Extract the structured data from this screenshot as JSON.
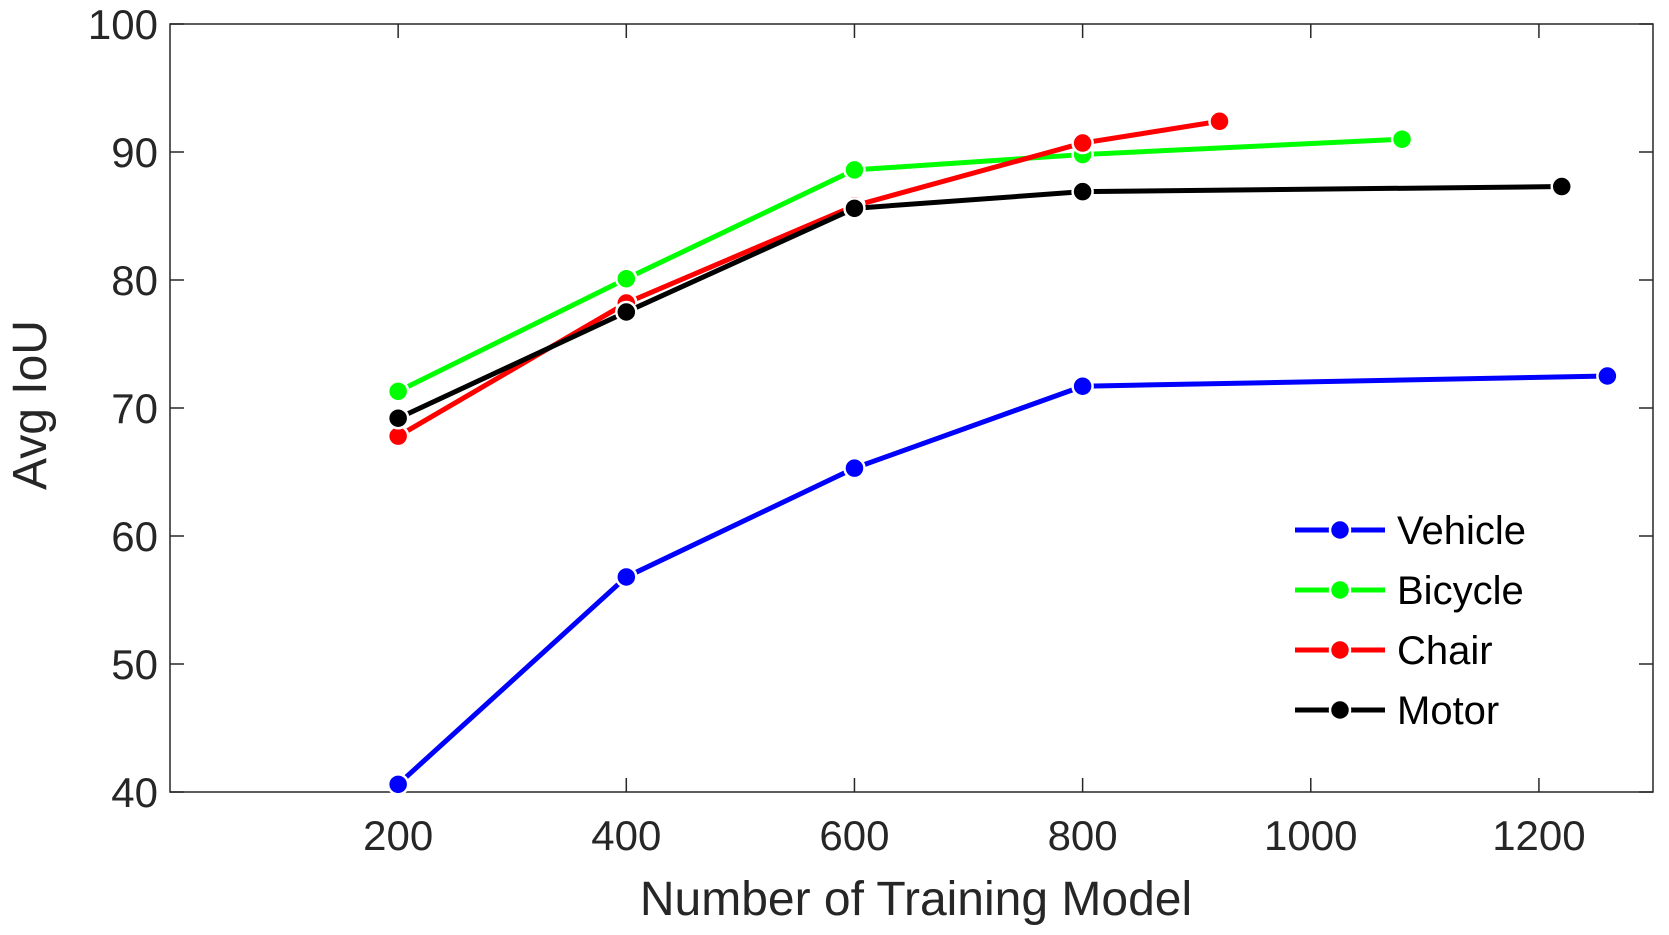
{
  "chart_data": {
    "type": "line",
    "title": "",
    "xlabel": "Number of Training Model",
    "ylabel": "Avg IoU",
    "xlim": [
      0,
      1300
    ],
    "ylim": [
      40,
      100
    ],
    "xticks": [
      200,
      400,
      600,
      800,
      1000,
      1200
    ],
    "yticks": [
      40,
      50,
      60,
      70,
      80,
      90,
      100
    ],
    "grid": false,
    "legend": "bottom-right",
    "series": [
      {
        "name": "Vehicle",
        "color": "#0000ff",
        "x": [
          200,
          400,
          600,
          800,
          1260
        ],
        "y": [
          40.6,
          56.8,
          65.3,
          71.7,
          72.5
        ]
      },
      {
        "name": "Bicycle",
        "color": "#00ff00",
        "x": [
          200,
          400,
          600,
          800,
          1080
        ],
        "y": [
          71.3,
          80.1,
          88.6,
          89.8,
          91.0
        ]
      },
      {
        "name": "Chair",
        "color": "#ff0000",
        "x": [
          200,
          400,
          600,
          800,
          920
        ],
        "y": [
          67.8,
          78.2,
          85.8,
          90.7,
          92.4
        ]
      },
      {
        "name": "Motor",
        "color": "#000000",
        "x": [
          200,
          400,
          600,
          800,
          1220
        ],
        "y": [
          69.2,
          77.5,
          85.6,
          86.9,
          87.3
        ]
      }
    ]
  }
}
